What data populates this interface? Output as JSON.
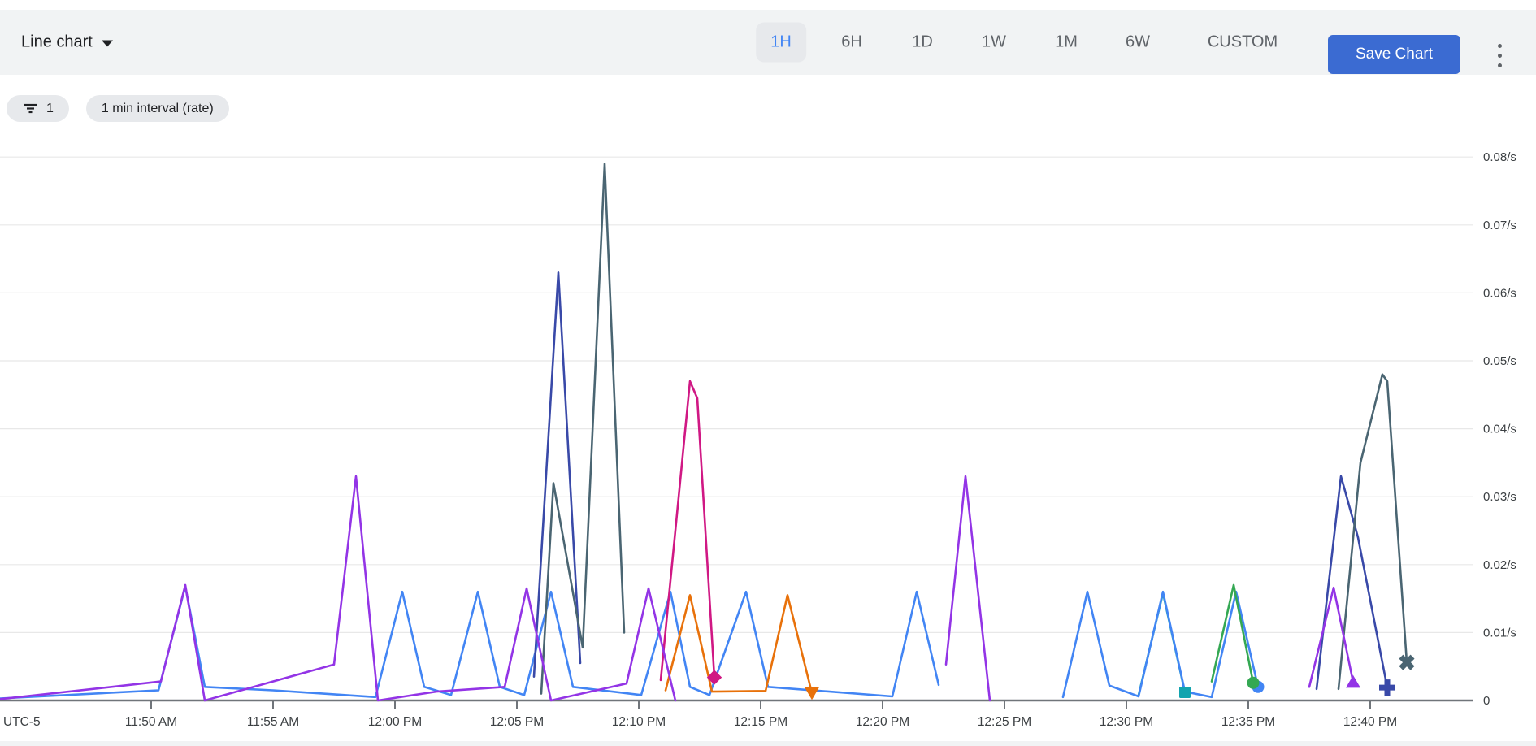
{
  "header": {
    "chart_type": {
      "label": "Line chart",
      "icon": "caret-down-icon"
    },
    "time_ranges": [
      {
        "label": "1H",
        "selected": true
      },
      {
        "label": "6H",
        "selected": false
      },
      {
        "label": "1D",
        "selected": false
      },
      {
        "label": "1W",
        "selected": false
      },
      {
        "label": "1M",
        "selected": false
      },
      {
        "label": "6W",
        "selected": false
      },
      {
        "label": "CUSTOM",
        "selected": false
      }
    ],
    "save_button_label": "Save Chart",
    "more_menu_icon": "kebab-menu-icon",
    "accent_color": "#3b6bd2",
    "selected_range_text_color": "#4285f4"
  },
  "filter_bar": {
    "filter_chip": {
      "icon": "filter-list-icon",
      "count": "1"
    },
    "interval_chip_label": "1 min interval (rate)"
  },
  "chart_data": {
    "type": "line",
    "title": "",
    "legend_position": "none",
    "grid": "horizontal",
    "x_axis": {
      "timezone_label": "UTC-5",
      "x_unit": "minutes_after_11:50_AM",
      "range_minutes": [
        -6.2,
        54.2
      ],
      "ticks": [
        {
          "minute": 0,
          "label": "11:50 AM"
        },
        {
          "minute": 5,
          "label": "11:55 AM"
        },
        {
          "minute": 10,
          "label": "12:00 PM"
        },
        {
          "minute": 15,
          "label": "12:05 PM"
        },
        {
          "minute": 20,
          "label": "12:10 PM"
        },
        {
          "minute": 25,
          "label": "12:15 PM"
        },
        {
          "minute": 30,
          "label": "12:20 PM"
        },
        {
          "minute": 35,
          "label": "12:25 PM"
        },
        {
          "minute": 40,
          "label": "12:30 PM"
        },
        {
          "minute": 45,
          "label": "12:35 PM"
        },
        {
          "minute": 50,
          "label": "12:40 PM"
        }
      ]
    },
    "y_axis": {
      "unit": "/s",
      "ylim": [
        0,
        0.08
      ],
      "ticks": [
        {
          "value": 0.08,
          "label": "0.08/s"
        },
        {
          "value": 0.07,
          "label": "0.07/s"
        },
        {
          "value": 0.06,
          "label": "0.06/s"
        },
        {
          "value": 0.05,
          "label": "0.05/s"
        },
        {
          "value": 0.04,
          "label": "0.04/s"
        },
        {
          "value": 0.03,
          "label": "0.03/s"
        },
        {
          "value": 0.02,
          "label": "0.02/s"
        },
        {
          "value": 0.01,
          "label": "0.01/s"
        },
        {
          "value": 0,
          "label": "0"
        }
      ]
    },
    "series": [
      {
        "id": "teal",
        "color": "#12a4af",
        "end_marker": "square",
        "segments": [
          [
            [
              40.5,
              0.0008
            ],
            [
              41.5,
              0.0158
            ],
            [
              42.4,
              0.0012
            ]
          ]
        ]
      },
      {
        "id": "blue",
        "color": "#4285f4",
        "end_marker": "circle",
        "segments": [
          [
            [
              -6.2,
              0.0003
            ],
            [
              0.3,
              0.0015
            ],
            [
              1.4,
              0.0168
            ],
            [
              2.2,
              0.002
            ],
            [
              5.0,
              0.0015
            ],
            [
              9.2,
              0.0005
            ],
            [
              10.3,
              0.016
            ],
            [
              11.2,
              0.002
            ],
            [
              12.3,
              0.0008
            ],
            [
              13.4,
              0.016
            ],
            [
              14.3,
              0.002
            ],
            [
              15.3,
              0.0008
            ],
            [
              16.4,
              0.016
            ],
            [
              17.3,
              0.002
            ],
            [
              20.1,
              0.0008
            ],
            [
              21.3,
              0.016
            ],
            [
              22.1,
              0.002
            ],
            [
              22.9,
              0.0008
            ],
            [
              24.4,
              0.016
            ],
            [
              25.3,
              0.002
            ],
            [
              30.4,
              0.0006
            ],
            [
              31.4,
              0.016
            ],
            [
              32.3,
              0.0023
            ]
          ],
          [
            [
              37.4,
              0.0005
            ],
            [
              38.4,
              0.016
            ],
            [
              39.3,
              0.0022
            ],
            [
              40.5,
              0.0006
            ],
            [
              41.5,
              0.016
            ],
            [
              42.4,
              0.0013
            ],
            [
              43.5,
              0.0005
            ],
            [
              44.5,
              0.016
            ],
            [
              45.4,
              0.002
            ]
          ]
        ]
      },
      {
        "id": "green",
        "color": "#34a853",
        "end_marker": "circle",
        "segments": [
          [
            [
              43.5,
              0.0028
            ],
            [
              44.4,
              0.017
            ],
            [
              45.2,
              0.0026
            ]
          ]
        ]
      },
      {
        "id": "orange",
        "color": "#e8710a",
        "end_marker": "triangle-down",
        "segments": [
          [
            [
              21.1,
              0.0015
            ],
            [
              22.1,
              0.0155
            ],
            [
              23.0,
              0.0013
            ],
            [
              25.2,
              0.0014
            ],
            [
              26.1,
              0.0155
            ],
            [
              27.1,
              0.0011
            ]
          ]
        ]
      },
      {
        "id": "pink",
        "color": "#d01884",
        "end_marker": "diamond",
        "segments": [
          [
            [
              20.9,
              0.003
            ],
            [
              22.1,
              0.047
            ],
            [
              22.4,
              0.0445
            ],
            [
              23.1,
              0.0034
            ]
          ]
        ]
      },
      {
        "id": "navy",
        "color": "#3949a8",
        "end_marker": "plus",
        "segments": [
          [
            [
              15.7,
              0.0035
            ],
            [
              16.7,
              0.063
            ],
            [
              17.6,
              0.0055
            ]
          ],
          [
            [
              47.8,
              0.0017
            ],
            [
              48.8,
              0.033
            ],
            [
              49.5,
              0.024
            ],
            [
              50.7,
              0.0019
            ]
          ]
        ]
      },
      {
        "id": "slate",
        "color": "#4a6572",
        "end_marker": "x",
        "segments": [
          [
            [
              16.0,
              0.001
            ],
            [
              16.5,
              0.032
            ],
            [
              17.7,
              0.0078
            ],
            [
              18.6,
              0.079
            ],
            [
              19.4,
              0.01
            ]
          ],
          [
            [
              48.7,
              0.0017
            ],
            [
              49.6,
              0.035
            ],
            [
              50.5,
              0.048
            ],
            [
              50.7,
              0.047
            ],
            [
              51.5,
              0.0056
            ]
          ]
        ]
      },
      {
        "id": "purple",
        "color": "#9334e6",
        "end_marker": "triangle-up",
        "segments": [
          [
            [
              -6.2,
              0.0002
            ],
            [
              0.4,
              0.0028
            ],
            [
              1.4,
              0.017
            ],
            [
              2.2,
              0
            ],
            [
              7.5,
              0.0053
            ],
            [
              8.4,
              0.033
            ],
            [
              9.3,
              0
            ],
            [
              11.7,
              0.0013
            ],
            [
              14.5,
              0.002
            ],
            [
              15.4,
              0.0165
            ],
            [
              16.4,
              0
            ],
            [
              19.5,
              0.0025
            ],
            [
              20.4,
              0.0165
            ],
            [
              21.5,
              0
            ]
          ],
          [
            [
              32.6,
              0.0053
            ],
            [
              33.4,
              0.033
            ],
            [
              34.4,
              0
            ]
          ],
          [
            [
              47.5,
              0.002
            ],
            [
              48.5,
              0.0166
            ],
            [
              49.3,
              0.0027
            ]
          ]
        ]
      }
    ]
  }
}
